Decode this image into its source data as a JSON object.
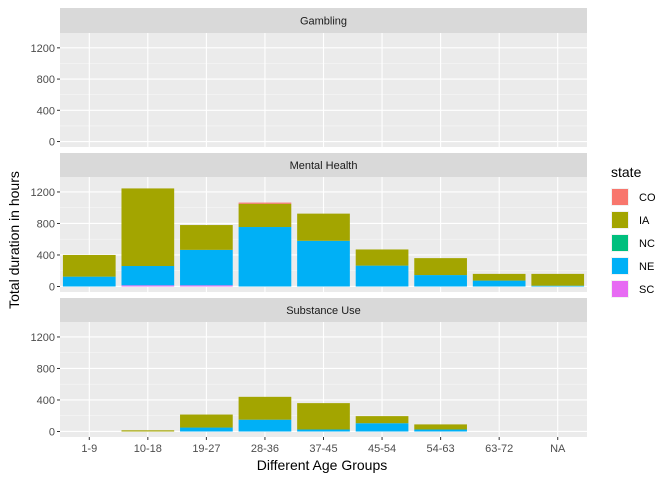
{
  "chart_data": {
    "type": "bar",
    "stacked": true,
    "faceted": true,
    "xlabel": "Different Age Groups",
    "ylabel": "Total duration in hours",
    "categories": [
      "1-9",
      "10-18",
      "19-27",
      "28-36",
      "37-45",
      "45-54",
      "54-63",
      "63-72",
      "NA"
    ],
    "ylim": [
      -70,
      1390
    ],
    "yticks": [
      0,
      400,
      800,
      1200
    ],
    "grid": true,
    "legend": {
      "title": "state",
      "placement": "right",
      "entries": [
        {
          "name": "CO",
          "color": "#F8766D"
        },
        {
          "name": "IA",
          "color": "#A3A500"
        },
        {
          "name": "NC",
          "color": "#00BF7D"
        },
        {
          "name": "NE",
          "color": "#00B0F6"
        },
        {
          "name": "SC",
          "color": "#E76BF3"
        }
      ]
    },
    "stack_order_bottom_to_top": [
      "SC",
      "NE",
      "NC",
      "IA",
      "CO"
    ],
    "facets": [
      {
        "title": "Gambling",
        "series": [
          {
            "name": "SC",
            "values": [
              0,
              0,
              0,
              0,
              0,
              0,
              0,
              0,
              0
            ]
          },
          {
            "name": "NE",
            "values": [
              0,
              0,
              0,
              0,
              0,
              0,
              0,
              0,
              0
            ]
          },
          {
            "name": "NC",
            "values": [
              0,
              0,
              0,
              0,
              0,
              0,
              0,
              0,
              0
            ]
          },
          {
            "name": "IA",
            "values": [
              0,
              0,
              0,
              0,
              0,
              0,
              0,
              0,
              0
            ]
          },
          {
            "name": "CO",
            "values": [
              0,
              0,
              0,
              0,
              0,
              0,
              0,
              0,
              0
            ]
          }
        ]
      },
      {
        "title": "Mental Health",
        "series": [
          {
            "name": "SC",
            "values": [
              0,
              15,
              15,
              0,
              0,
              0,
              0,
              0,
              0
            ]
          },
          {
            "name": "NE",
            "values": [
              125,
              245,
              450,
              755,
              580,
              265,
              145,
              75,
              10
            ]
          },
          {
            "name": "NC",
            "values": [
              0,
              0,
              0,
              0,
              0,
              0,
              0,
              0,
              0
            ]
          },
          {
            "name": "IA",
            "values": [
              275,
              985,
              315,
              295,
              345,
              205,
              215,
              85,
              150
            ]
          },
          {
            "name": "CO",
            "values": [
              0,
              0,
              0,
              15,
              0,
              0,
              0,
              0,
              0
            ]
          }
        ]
      },
      {
        "title": "Substance Use",
        "series": [
          {
            "name": "SC",
            "values": [
              0,
              0,
              0,
              0,
              0,
              0,
              0,
              0,
              0
            ]
          },
          {
            "name": "NE",
            "values": [
              0,
              0,
              50,
              150,
              25,
              105,
              25,
              0,
              0
            ]
          },
          {
            "name": "NC",
            "values": [
              0,
              0,
              0,
              0,
              0,
              0,
              0,
              0,
              0
            ]
          },
          {
            "name": "IA",
            "values": [
              0,
              15,
              165,
              290,
              335,
              90,
              65,
              0,
              0
            ]
          },
          {
            "name": "CO",
            "values": [
              0,
              0,
              0,
              0,
              0,
              0,
              0,
              0,
              0
            ]
          }
        ]
      }
    ]
  }
}
